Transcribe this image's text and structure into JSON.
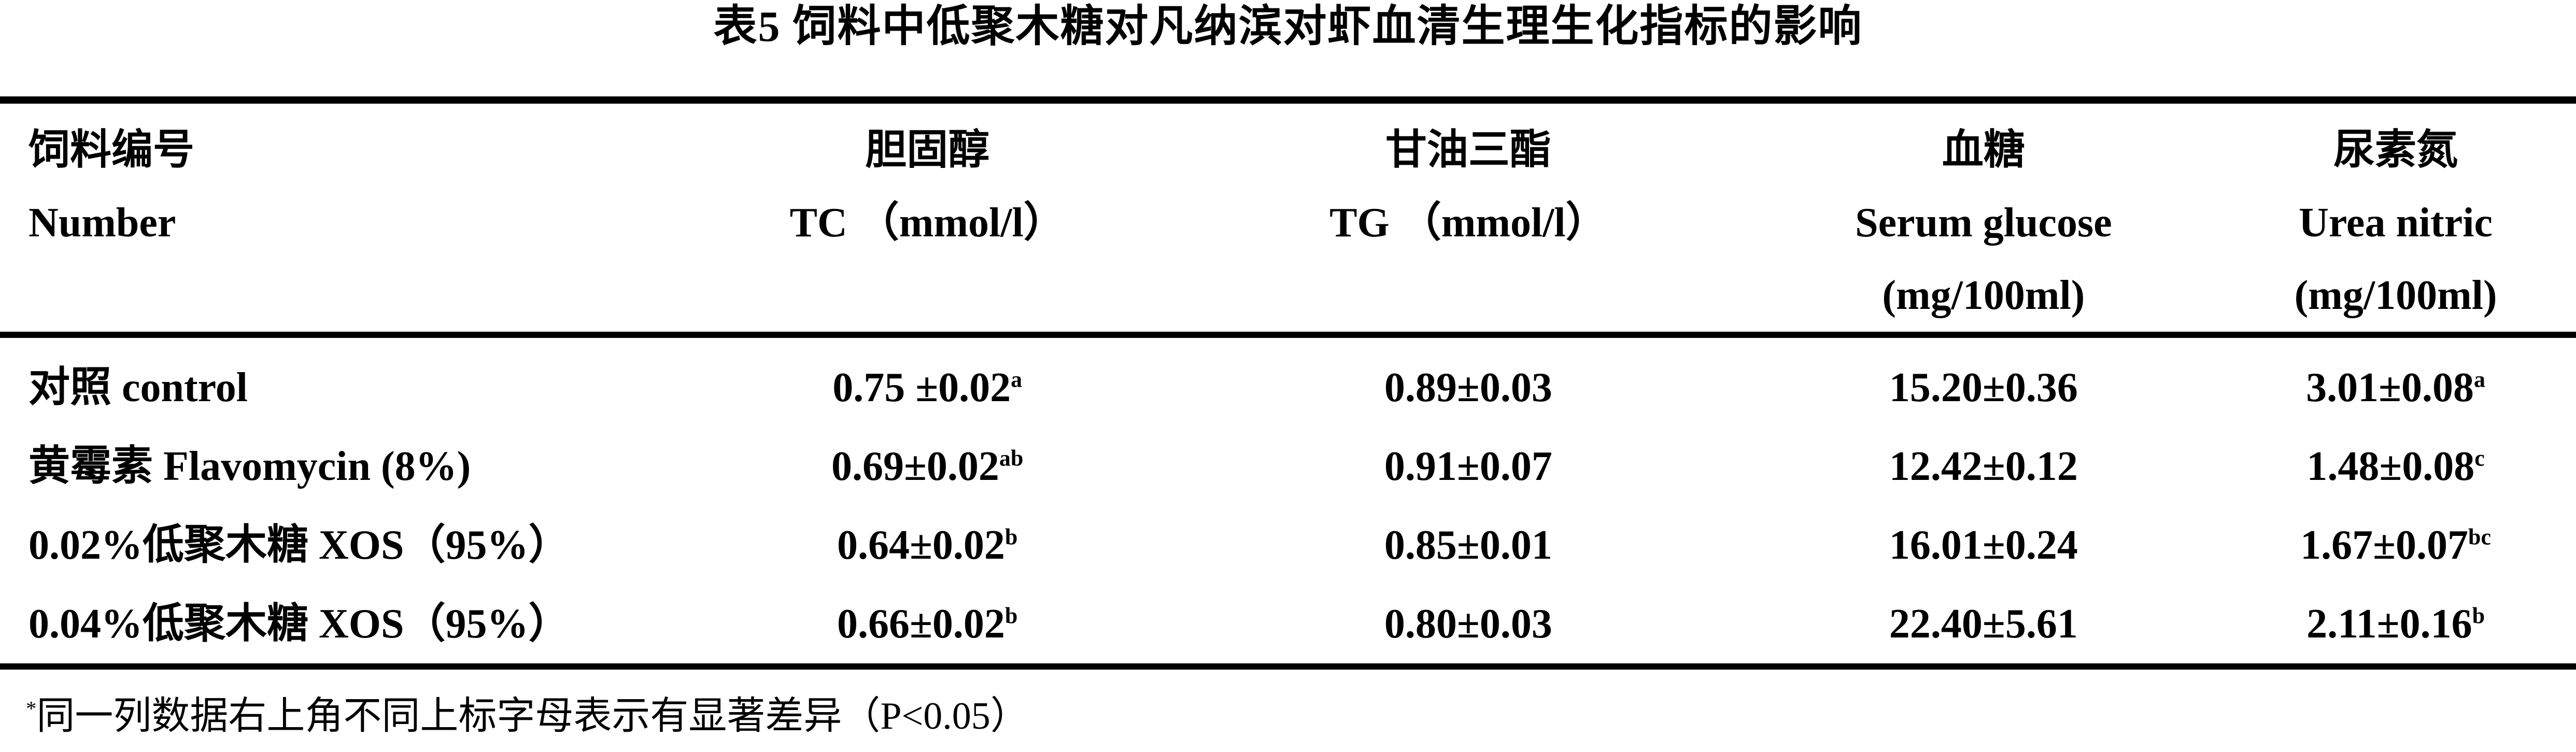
{
  "title": "表5 饲料中低聚木糖对凡纳滨对虾血清生理生化指标的影响",
  "columns": {
    "feed": {
      "zh": "饲料编号",
      "en": "Number",
      "unit": ""
    },
    "tc": {
      "zh": "胆固醇",
      "en": "TC （mmol/l）",
      "unit": ""
    },
    "tg": {
      "zh": "甘油三酯",
      "en": "TG （mmol/l）",
      "unit": ""
    },
    "glucose": {
      "zh": "血糖",
      "en": "Serum glucose",
      "unit": "(mg/100ml)"
    },
    "urea": {
      "zh": "尿素氮",
      "en": "Urea nitric",
      "unit": "(mg/100ml)"
    }
  },
  "rows": [
    {
      "feed": "对照 control",
      "tc": {
        "value": "0.75 ±0.02",
        "sup": "a"
      },
      "tg": {
        "value": "0.89±0.03",
        "sup": ""
      },
      "glucose": {
        "value": "15.20±0.36",
        "sup": ""
      },
      "urea": {
        "value": "3.01±0.08",
        "sup": "a"
      }
    },
    {
      "feed": "黄霉素 Flavomycin (8%)",
      "tc": {
        "value": "0.69±0.02",
        "sup": "ab"
      },
      "tg": {
        "value": "0.91±0.07",
        "sup": ""
      },
      "glucose": {
        "value": "12.42±0.12",
        "sup": ""
      },
      "urea": {
        "value": "1.48±0.08",
        "sup": "c"
      }
    },
    {
      "feed": "0.02%低聚木糖 XOS（95%）",
      "tc": {
        "value": "0.64±0.02",
        "sup": "b"
      },
      "tg": {
        "value": "0.85±0.01",
        "sup": ""
      },
      "glucose": {
        "value": "16.01±0.24",
        "sup": ""
      },
      "urea": {
        "value": "1.67±0.07",
        "sup": "bc"
      }
    },
    {
      "feed": "0.04%低聚木糖 XOS（95%）",
      "tc": {
        "value": "0.66±0.02",
        "sup": "b"
      },
      "tg": {
        "value": "0.80±0.03",
        "sup": ""
      },
      "glucose": {
        "value": "22.40±5.61",
        "sup": ""
      },
      "urea": {
        "value": "2.11±0.16",
        "sup": "b"
      }
    }
  ],
  "footnote": {
    "marker": "*",
    "text": "同一列数据右上角不同上标字母表示有显著差异（P<0.05）"
  }
}
